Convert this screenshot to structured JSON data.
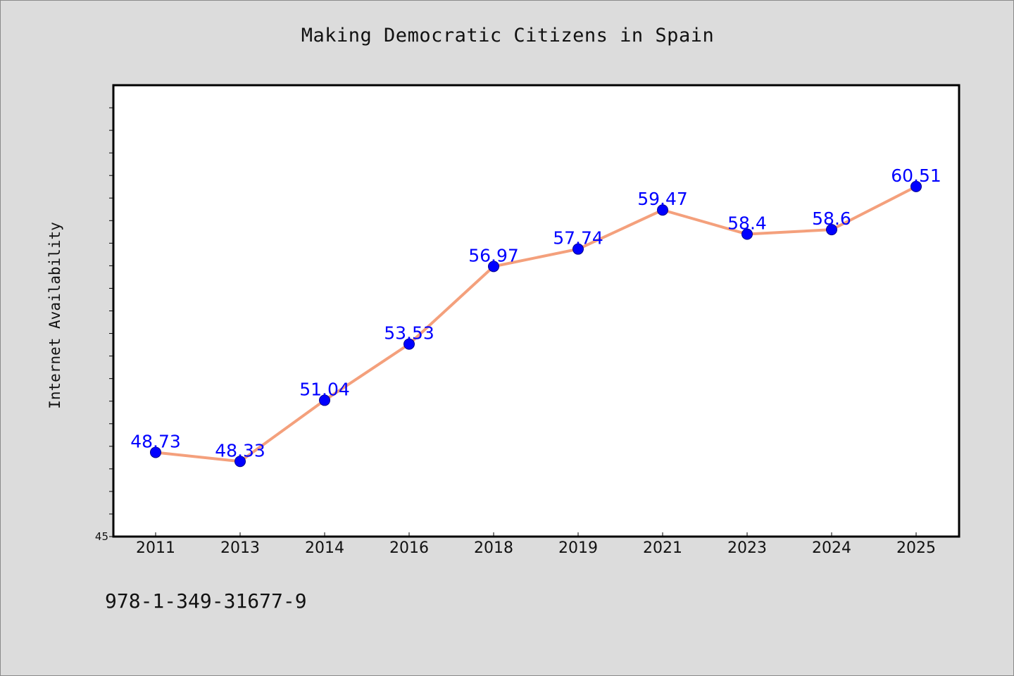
{
  "chart_data": {
    "type": "line",
    "title": "Making Democratic Citizens in Spain",
    "xlabel": "",
    "ylabel": "Internet Availability",
    "categories": [
      "2011",
      "2013",
      "2014",
      "2016",
      "2018",
      "2019",
      "2021",
      "2023",
      "2024",
      "2025"
    ],
    "series": [
      {
        "values": [
          48.73,
          48.33,
          51.04,
          53.53,
          56.97,
          57.74,
          59.47,
          58.4,
          58.6,
          60.51
        ],
        "data_labels": [
          "48.73",
          "48.33",
          "51.04",
          "53.53",
          "56.97",
          "57.74",
          "59.47",
          "58.4",
          "58.6",
          "60.51"
        ]
      }
    ],
    "ylim": [
      45,
      65
    ],
    "y_tick_labels": [
      "45"
    ],
    "grid": false,
    "legend": "none",
    "colors": {
      "line": "#f4a07c",
      "marker": "#0000ff",
      "data_label": "#0000ff",
      "plot_background": "#ffffff",
      "page_background": "#dcdcdc"
    }
  },
  "caption": "978-1-349-31677-9"
}
